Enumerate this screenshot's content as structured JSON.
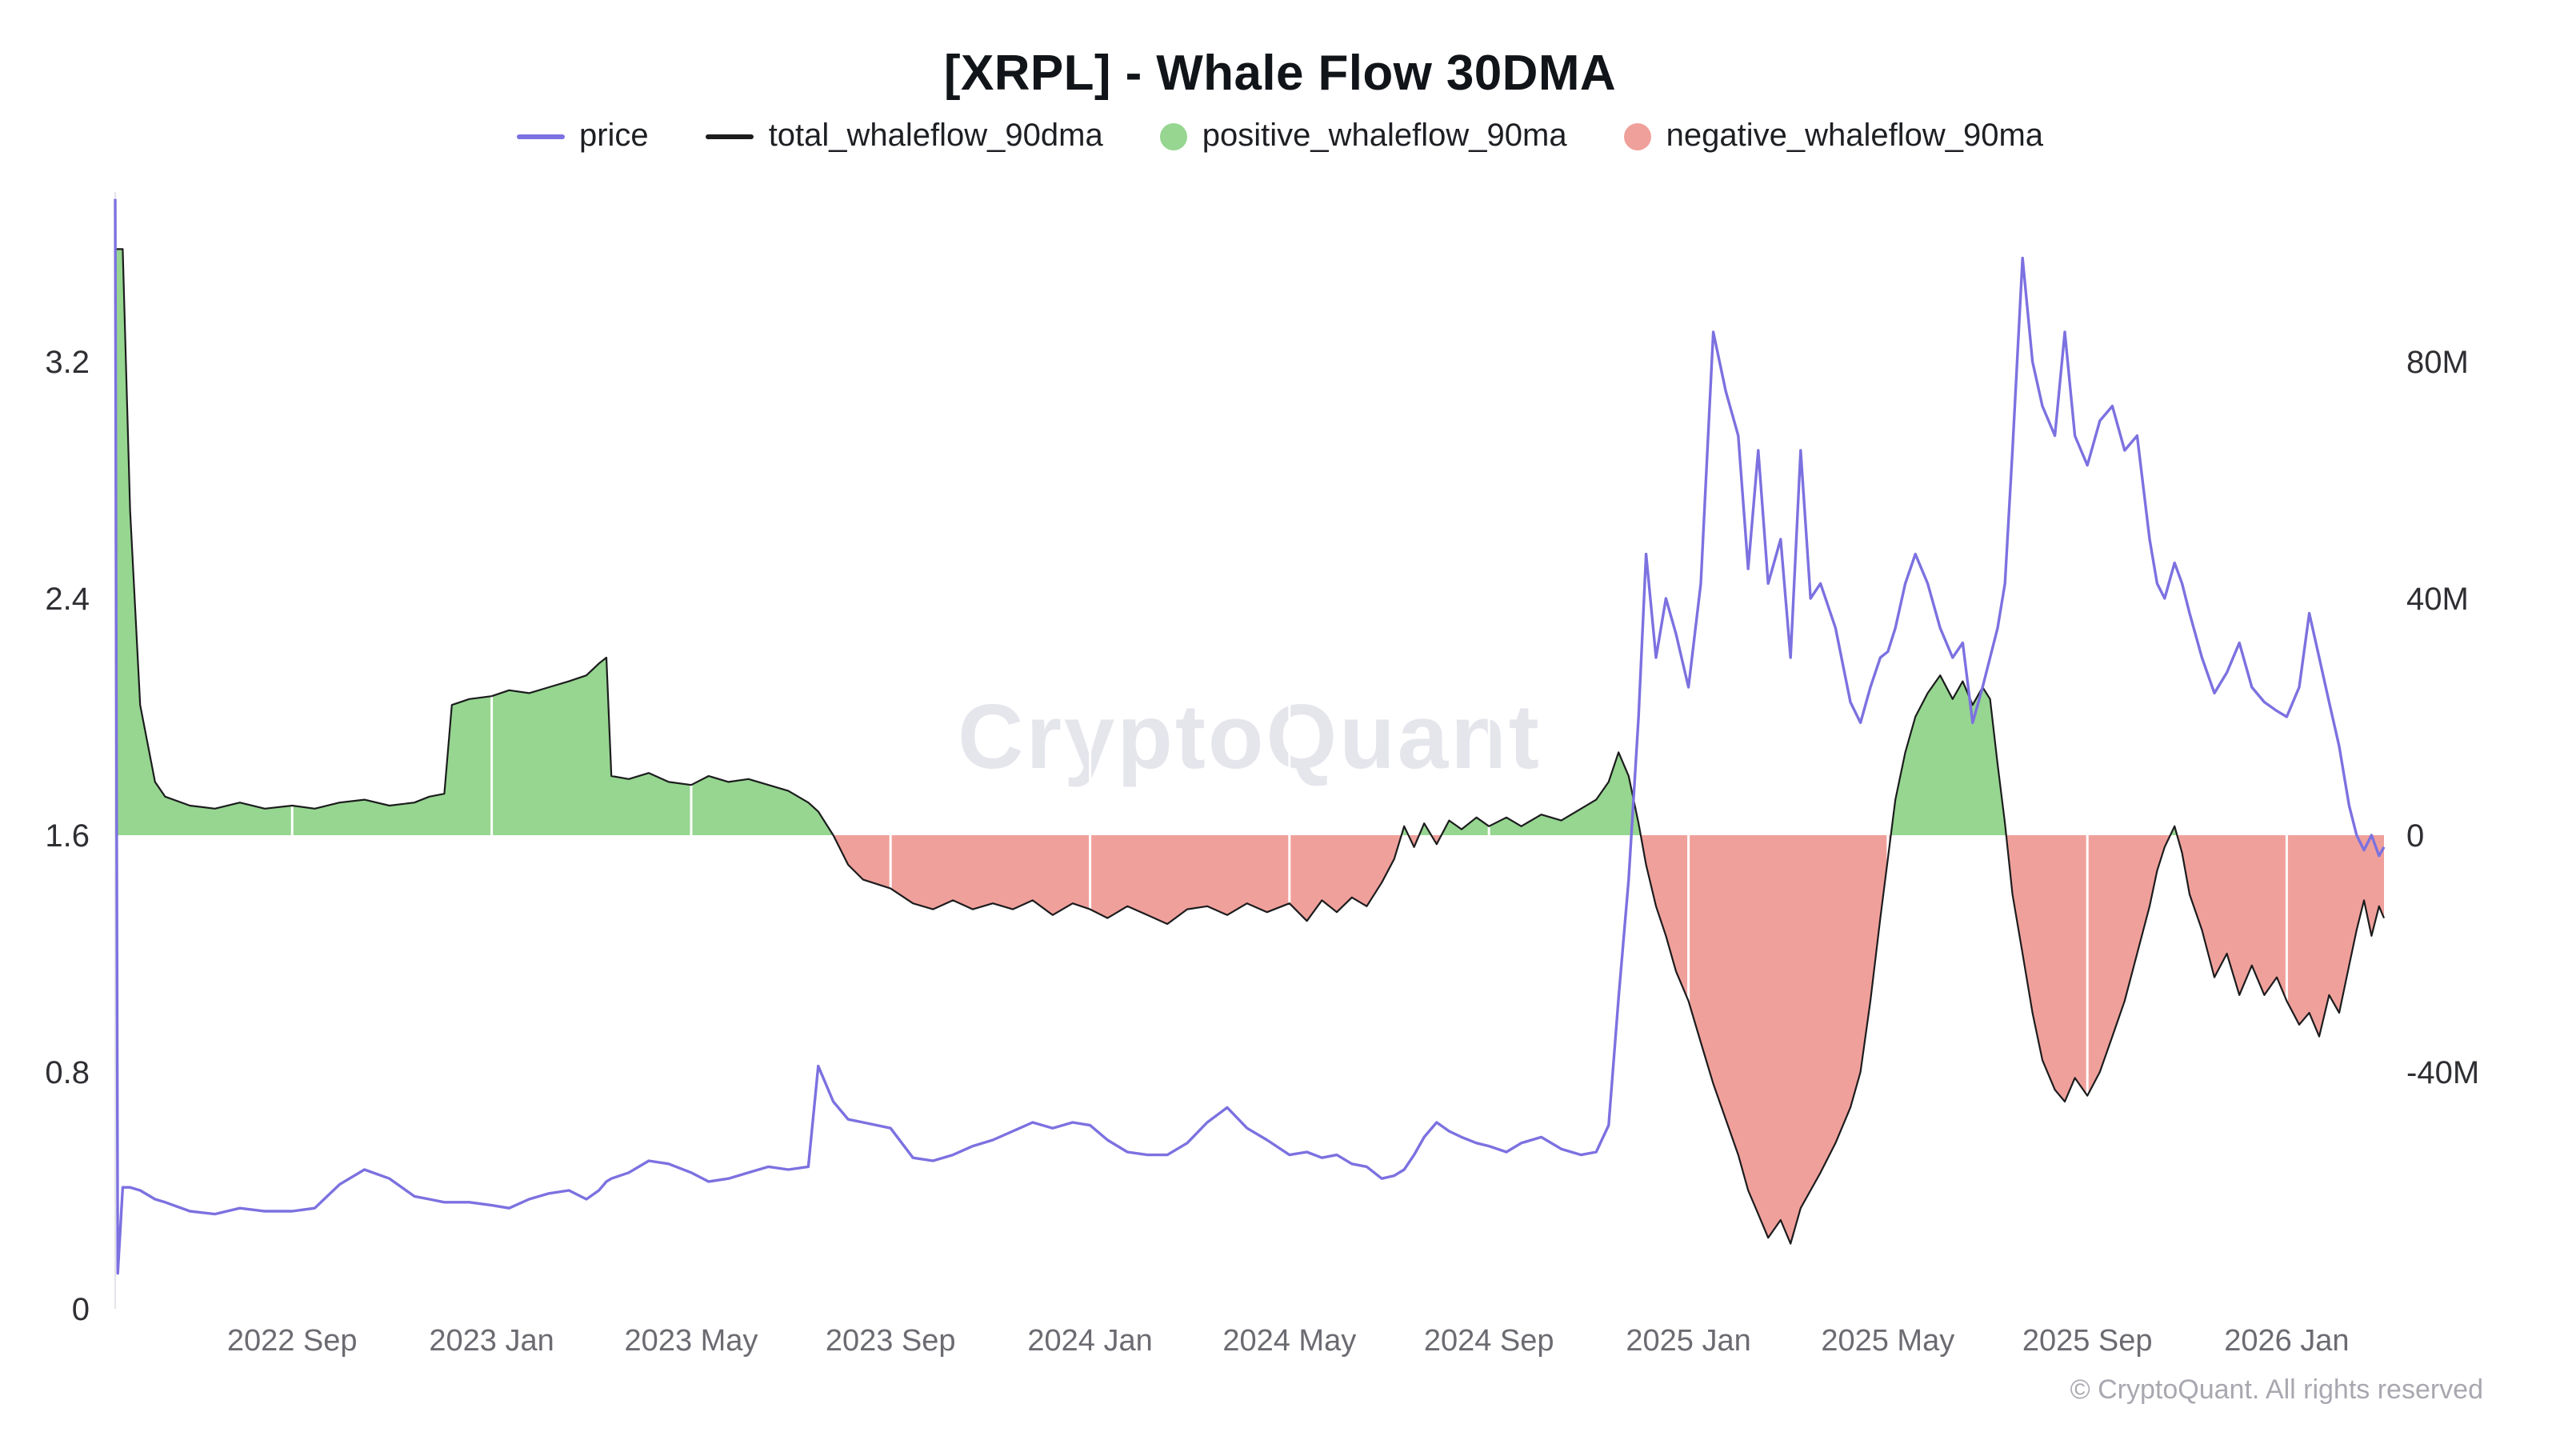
{
  "title": "[XRPL] - Whale Flow 30DMA",
  "watermark": "CryptoQuant",
  "copyright": "© CryptoQuant. All rights reserved",
  "legend": [
    {
      "label": "price",
      "type": "line",
      "color": "#7c71e0"
    },
    {
      "label": "total_whaleflow_90dma",
      "type": "line",
      "color": "#1c1c1e"
    },
    {
      "label": "positive_whaleflow_90ma",
      "type": "dot",
      "color": "#96d690"
    },
    {
      "label": "negative_whaleflow_90ma",
      "type": "dot",
      "color": "#f0a09b"
    }
  ],
  "chart_data": {
    "type": "line+area",
    "title": "[XRPL] - Whale Flow 30DMA",
    "x_unit": "months since 2022-05-15",
    "x_range": [
      0,
      45.5
    ],
    "x_ticks": [
      {
        "t": 3.55,
        "label": "2022 Sep"
      },
      {
        "t": 7.55,
        "label": "2023 Jan"
      },
      {
        "t": 11.55,
        "label": "2023 May"
      },
      {
        "t": 15.55,
        "label": "2023 Sep"
      },
      {
        "t": 19.55,
        "label": "2024 Jan"
      },
      {
        "t": 23.55,
        "label": "2024 May"
      },
      {
        "t": 27.55,
        "label": "2024 Sep"
      },
      {
        "t": 31.55,
        "label": "2025 Jan"
      },
      {
        "t": 35.55,
        "label": "2025 May"
      },
      {
        "t": 39.55,
        "label": "2025 Sep"
      },
      {
        "t": 43.55,
        "label": "2026 Jan"
      }
    ],
    "price_axis": {
      "side": "left",
      "range": [
        0,
        3.2
      ],
      "ticks": [
        {
          "v": 0,
          "label": "0"
        },
        {
          "v": 0.8,
          "label": "0.8"
        },
        {
          "v": 1.6,
          "label": "1.6"
        },
        {
          "v": 2.4,
          "label": "2.4"
        },
        {
          "v": 3.2,
          "label": "3.2"
        }
      ]
    },
    "flow_axis": {
      "side": "right",
      "unit": "M",
      "range": [
        -40,
        80
      ],
      "ticks": [
        {
          "v": 80,
          "label": "80M"
        },
        {
          "v": 40,
          "label": "40M"
        },
        {
          "v": 0,
          "label": "0"
        },
        {
          "v": -40,
          "label": "-40M"
        }
      ]
    },
    "series": {
      "price_color": "#7c71e0",
      "flow_line_color": "#1c1c1e",
      "positive_fill": "#96d690",
      "negative_fill": "#f0a09b",
      "point_format": [
        "t_months",
        "price_usd",
        "whaleflow_millions"
      ],
      "points": [
        [
          0.0,
          3.75,
          99
        ],
        [
          0.05,
          0.12,
          99
        ],
        [
          0.15,
          0.41,
          99
        ],
        [
          0.3,
          0.41,
          55
        ],
        [
          0.5,
          0.4,
          22
        ],
        [
          0.8,
          0.37,
          9
        ],
        [
          1.0,
          0.36,
          6.5
        ],
        [
          1.5,
          0.33,
          5
        ],
        [
          2.0,
          0.32,
          4.5
        ],
        [
          2.5,
          0.34,
          5.5
        ],
        [
          3.0,
          0.33,
          4.5
        ],
        [
          3.55,
          0.33,
          5
        ],
        [
          4.0,
          0.34,
          4.5
        ],
        [
          4.5,
          0.42,
          5.5
        ],
        [
          5.0,
          0.47,
          6
        ],
        [
          5.5,
          0.44,
          5
        ],
        [
          6.0,
          0.38,
          5.5
        ],
        [
          6.3,
          0.37,
          6.5
        ],
        [
          6.6,
          0.36,
          7
        ],
        [
          6.75,
          0.36,
          22
        ],
        [
          7.1,
          0.36,
          23
        ],
        [
          7.55,
          0.35,
          23.5
        ],
        [
          7.9,
          0.34,
          24.5
        ],
        [
          8.3,
          0.37,
          24
        ],
        [
          8.7,
          0.39,
          25
        ],
        [
          9.1,
          0.4,
          26
        ],
        [
          9.45,
          0.37,
          27
        ],
        [
          9.7,
          0.4,
          29
        ],
        [
          9.85,
          0.43,
          30
        ],
        [
          9.95,
          0.44,
          10
        ],
        [
          10.3,
          0.46,
          9.5
        ],
        [
          10.7,
          0.5,
          10.5
        ],
        [
          11.1,
          0.49,
          9
        ],
        [
          11.55,
          0.46,
          8.5
        ],
        [
          11.9,
          0.43,
          10
        ],
        [
          12.3,
          0.44,
          9
        ],
        [
          12.7,
          0.46,
          9.5
        ],
        [
          13.1,
          0.48,
          8.5
        ],
        [
          13.5,
          0.47,
          7.5
        ],
        [
          13.9,
          0.48,
          5.5
        ],
        [
          14.1,
          0.82,
          4
        ],
        [
          14.4,
          0.7,
          0
        ],
        [
          14.7,
          0.64,
          -5
        ],
        [
          15.0,
          0.63,
          -7.5
        ],
        [
          15.55,
          0.61,
          -9
        ],
        [
          16.0,
          0.51,
          -11.5
        ],
        [
          16.4,
          0.5,
          -12.5
        ],
        [
          16.8,
          0.52,
          -11
        ],
        [
          17.2,
          0.55,
          -12.5
        ],
        [
          17.6,
          0.57,
          -11.5
        ],
        [
          18.0,
          0.6,
          -12.5
        ],
        [
          18.4,
          0.63,
          -11
        ],
        [
          18.8,
          0.61,
          -13.5
        ],
        [
          19.2,
          0.63,
          -11.5
        ],
        [
          19.55,
          0.62,
          -12.5
        ],
        [
          19.9,
          0.57,
          -14
        ],
        [
          20.3,
          0.53,
          -12
        ],
        [
          20.7,
          0.52,
          -13.5
        ],
        [
          21.1,
          0.52,
          -15
        ],
        [
          21.5,
          0.56,
          -12.5
        ],
        [
          21.9,
          0.63,
          -12
        ],
        [
          22.3,
          0.68,
          -13.5
        ],
        [
          22.7,
          0.61,
          -11.5
        ],
        [
          23.1,
          0.57,
          -13
        ],
        [
          23.55,
          0.52,
          -11.5
        ],
        [
          23.9,
          0.53,
          -14.5
        ],
        [
          24.2,
          0.51,
          -11
        ],
        [
          24.5,
          0.52,
          -13
        ],
        [
          24.8,
          0.49,
          -10.5
        ],
        [
          25.1,
          0.48,
          -12
        ],
        [
          25.4,
          0.44,
          -8
        ],
        [
          25.65,
          0.45,
          -4
        ],
        [
          25.85,
          0.47,
          1.5
        ],
        [
          26.05,
          0.52,
          -2
        ],
        [
          26.25,
          0.58,
          2
        ],
        [
          26.5,
          0.63,
          -1.5
        ],
        [
          26.75,
          0.6,
          2.5
        ],
        [
          27.0,
          0.58,
          1
        ],
        [
          27.3,
          0.56,
          3
        ],
        [
          27.55,
          0.55,
          1.5
        ],
        [
          27.9,
          0.53,
          3
        ],
        [
          28.2,
          0.56,
          1.5
        ],
        [
          28.6,
          0.58,
          3.5
        ],
        [
          29.0,
          0.54,
          2.5
        ],
        [
          29.4,
          0.52,
          4.5
        ],
        [
          29.7,
          0.53,
          6
        ],
        [
          29.95,
          0.62,
          9
        ],
        [
          30.15,
          1.05,
          14
        ],
        [
          30.35,
          1.45,
          10
        ],
        [
          30.55,
          2.0,
          2
        ],
        [
          30.7,
          2.55,
          -5
        ],
        [
          30.9,
          2.2,
          -12
        ],
        [
          31.1,
          2.4,
          -17
        ],
        [
          31.3,
          2.28,
          -23
        ],
        [
          31.55,
          2.1,
          -28
        ],
        [
          31.8,
          2.45,
          -35
        ],
        [
          32.05,
          3.3,
          -42
        ],
        [
          32.3,
          3.1,
          -48
        ],
        [
          32.55,
          2.95,
          -54
        ],
        [
          32.75,
          2.5,
          -60
        ],
        [
          32.95,
          2.9,
          -64
        ],
        [
          33.15,
          2.45,
          -68
        ],
        [
          33.4,
          2.6,
          -65
        ],
        [
          33.6,
          2.2,
          -69
        ],
        [
          33.8,
          2.9,
          -63
        ],
        [
          34.0,
          2.4,
          -60
        ],
        [
          34.2,
          2.45,
          -57
        ],
        [
          34.5,
          2.3,
          -52
        ],
        [
          34.8,
          2.05,
          -46
        ],
        [
          35.0,
          1.98,
          -40
        ],
        [
          35.2,
          2.1,
          -28
        ],
        [
          35.4,
          2.2,
          -14
        ],
        [
          35.55,
          2.22,
          -4
        ],
        [
          35.7,
          2.3,
          6
        ],
        [
          35.9,
          2.45,
          14
        ],
        [
          36.1,
          2.55,
          20
        ],
        [
          36.35,
          2.45,
          24
        ],
        [
          36.6,
          2.3,
          27
        ],
        [
          36.85,
          2.2,
          23
        ],
        [
          37.05,
          2.25,
          26
        ],
        [
          37.25,
          1.98,
          22
        ],
        [
          37.45,
          2.1,
          25
        ],
        [
          37.6,
          2.2,
          23
        ],
        [
          37.75,
          2.3,
          12
        ],
        [
          37.9,
          2.45,
          2
        ],
        [
          38.05,
          2.9,
          -10
        ],
        [
          38.25,
          3.55,
          -20
        ],
        [
          38.45,
          3.2,
          -30
        ],
        [
          38.65,
          3.05,
          -38
        ],
        [
          38.9,
          2.95,
          -43
        ],
        [
          39.1,
          3.3,
          -45
        ],
        [
          39.3,
          2.95,
          -41
        ],
        [
          39.55,
          2.85,
          -44
        ],
        [
          39.8,
          3.0,
          -40
        ],
        [
          40.05,
          3.05,
          -34
        ],
        [
          40.3,
          2.9,
          -28
        ],
        [
          40.55,
          2.95,
          -20
        ],
        [
          40.8,
          2.6,
          -12
        ],
        [
          40.95,
          2.45,
          -6
        ],
        [
          41.1,
          2.4,
          -2
        ],
        [
          41.3,
          2.52,
          1.5
        ],
        [
          41.45,
          2.45,
          -3
        ],
        [
          41.6,
          2.35,
          -10
        ],
        [
          41.85,
          2.2,
          -16
        ],
        [
          42.1,
          2.08,
          -24
        ],
        [
          42.35,
          2.15,
          -20
        ],
        [
          42.6,
          2.25,
          -27
        ],
        [
          42.85,
          2.1,
          -22
        ],
        [
          43.1,
          2.05,
          -27
        ],
        [
          43.35,
          2.02,
          -24
        ],
        [
          43.55,
          2.0,
          -28
        ],
        [
          43.8,
          2.1,
          -32
        ],
        [
          44.0,
          2.35,
          -30
        ],
        [
          44.2,
          2.2,
          -34
        ],
        [
          44.4,
          2.05,
          -27
        ],
        [
          44.6,
          1.9,
          -30
        ],
        [
          44.8,
          1.7,
          -22
        ],
        [
          44.95,
          1.6,
          -16
        ],
        [
          45.1,
          1.55,
          -11
        ],
        [
          45.25,
          1.6,
          -17
        ],
        [
          45.4,
          1.53,
          -12
        ],
        [
          45.5,
          1.56,
          -14
        ]
      ]
    }
  }
}
